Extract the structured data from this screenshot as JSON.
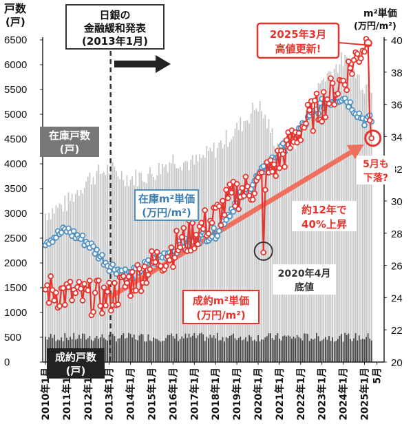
{
  "chart_data": {
    "type": "line",
    "left_axis": {
      "title": "戸数",
      "unit": "(戸)",
      "ticks": [
        0,
        500,
        1000,
        1500,
        2000,
        2500,
        3000,
        3500,
        4000,
        4500,
        5000,
        5500,
        6000,
        6500
      ],
      "range": [
        0,
        6500
      ]
    },
    "right_axis": {
      "title": "m²単価",
      "unit": "(万円/m²)",
      "ticks": [
        20,
        22,
        24,
        26,
        28,
        30,
        32,
        34,
        36,
        38,
        40
      ],
      "range": [
        20,
        40
      ]
    },
    "x_labels": [
      "2010年1月",
      "2011年1月",
      "2012年1月",
      "2013年1月",
      "2014年1月",
      "2015年1月",
      "2016年1月",
      "2017年1月",
      "2018年1月",
      "2019年1月",
      "2020年1月",
      "2021年1月",
      "2022年1月",
      "2023年1月",
      "2024年1月",
      "2025年1月",
      "5月"
    ],
    "stock_units_yearly_avg": [
      {
        "year": 2010,
        "value": 3000
      },
      {
        "year": 2011,
        "value": 3200
      },
      {
        "year": 2012,
        "value": 3700
      },
      {
        "year": 2013,
        "value": 3900
      },
      {
        "year": 2014,
        "value": 3700
      },
      {
        "year": 2015,
        "value": 3800
      },
      {
        "year": 2016,
        "value": 4100
      },
      {
        "year": 2017,
        "value": 4000
      },
      {
        "year": 2018,
        "value": 4300
      },
      {
        "year": 2019,
        "value": 4700
      },
      {
        "year": 2020,
        "value": 5200
      },
      {
        "year": 2021,
        "value": 4300
      },
      {
        "year": 2022,
        "value": 4500
      },
      {
        "year": 2023,
        "value": 5700
      },
      {
        "year": 2024,
        "value": 6100
      },
      {
        "year": 2025,
        "value": 5600
      }
    ],
    "contracted_units_approx": 500,
    "stock_price_yearly": [
      {
        "year": 2010,
        "value": 27.5
      },
      {
        "year": 2011,
        "value": 28.2
      },
      {
        "year": 2012,
        "value": 27.4
      },
      {
        "year": 2013,
        "value": 26.0
      },
      {
        "year": 2014,
        "value": 25.4
      },
      {
        "year": 2015,
        "value": 26.2
      },
      {
        "year": 2016,
        "value": 27.0
      },
      {
        "year": 2017,
        "value": 27.6
      },
      {
        "year": 2018,
        "value": 28.0
      },
      {
        "year": 2019,
        "value": 30.0
      },
      {
        "year": 2020,
        "value": 31.5
      },
      {
        "year": 2021,
        "value": 33.0
      },
      {
        "year": 2022,
        "value": 34.5
      },
      {
        "year": 2023,
        "value": 36.0
      },
      {
        "year": 2024,
        "value": 36.5
      },
      {
        "year": 2025,
        "value": 35.0
      }
    ],
    "contract_price_yearly": [
      {
        "year": 2010,
        "value": 24.5
      },
      {
        "year": 2011,
        "value": 24.2
      },
      {
        "year": 2012,
        "value": 24.0
      },
      {
        "year": 2013,
        "value": 24.0
      },
      {
        "year": 2014,
        "value": 25.0
      },
      {
        "year": 2015,
        "value": 26.0
      },
      {
        "year": 2016,
        "value": 27.0
      },
      {
        "year": 2017,
        "value": 28.0
      },
      {
        "year": 2018,
        "value": 29.0
      },
      {
        "year": 2019,
        "value": 30.5
      },
      {
        "year": 2020,
        "value": 31.0
      },
      {
        "year": 2021,
        "value": 32.5
      },
      {
        "year": 2022,
        "value": 34.5
      },
      {
        "year": 2023,
        "value": 36.0
      },
      {
        "year": 2024,
        "value": 37.5
      },
      {
        "year": 2025,
        "value": 39.8
      }
    ],
    "trend": {
      "from": {
        "year": 2013,
        "value": 24.0
      },
      "to": {
        "year": 2025.3,
        "value": 33.6
      }
    },
    "low_point": {
      "year": 2020.25,
      "value": 26.8
    },
    "last_point": {
      "year": 2025.33,
      "value": 33.9
    }
  },
  "labels": {
    "left_title": "戸数",
    "left_unit": "(戸)",
    "right_title": "m²単価",
    "right_unit": "(万円/m²)",
    "boj_line1": "日銀の",
    "boj_line2": "金融緩和発表",
    "boj_line3": "(2013年1月)",
    "peak_line1": "2025年3月",
    "peak_line2": "高値更新!",
    "stock_units_line1": "在庫戸数",
    "stock_units_line2": "(戸)",
    "stock_price_line1": "在庫m²単価",
    "stock_price_line2": "(万円/m²)",
    "rise_line1": "約12年で",
    "rise_line2": "40%上昇",
    "low_line1": "2020年4月",
    "low_line2": "底値",
    "contract_price_line1": "成約m²単価",
    "contract_price_line2": "(万円/m²)",
    "contract_units_line1": "成約戸数",
    "contract_units_line2": "(戸)",
    "may_line1": "5月も",
    "may_line2": "下落?"
  },
  "colors": {
    "red": "#e8322b",
    "blue": "#4f90c2",
    "bar": "#c8c8c8",
    "dark_bar": "#444444"
  }
}
